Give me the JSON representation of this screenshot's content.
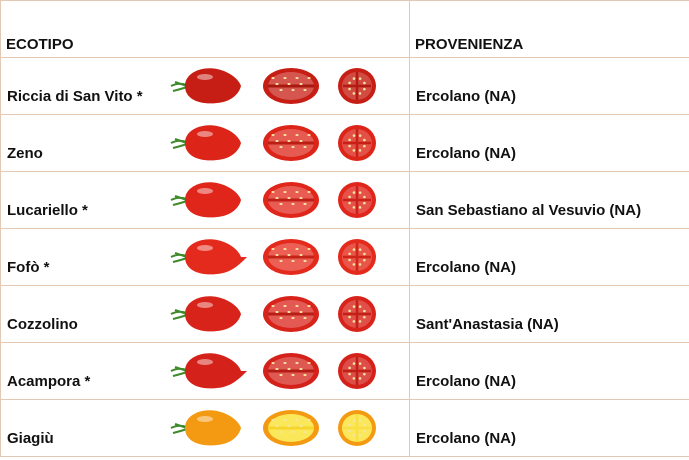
{
  "headers": {
    "ecotype": "ECOTIPO",
    "origin": "PROVENIENZA"
  },
  "rows": [
    {
      "name": "Riccia di San Vito *",
      "origin": "Ercolano (NA)",
      "color": "#c61e14"
    },
    {
      "name": "Zeno",
      "origin": "Ercolano (NA)",
      "color": "#dc2418"
    },
    {
      "name": "Lucariello *",
      "origin": "San Sebastiano al Vesuvio (NA)",
      "color": "#e0261b"
    },
    {
      "name": "Fofò *",
      "origin": "Ercolano (NA)",
      "color": "#e42a1c"
    },
    {
      "name": "Cozzolino",
      "origin": "Sant'Anastasia (NA)",
      "color": "#d8231a"
    },
    {
      "name": "Acampora *",
      "origin": "Ercolano (NA)",
      "color": "#d4221a"
    },
    {
      "name": "Giagiù",
      "origin": "Ercolano (NA)",
      "color": "#f49a12"
    }
  ]
}
